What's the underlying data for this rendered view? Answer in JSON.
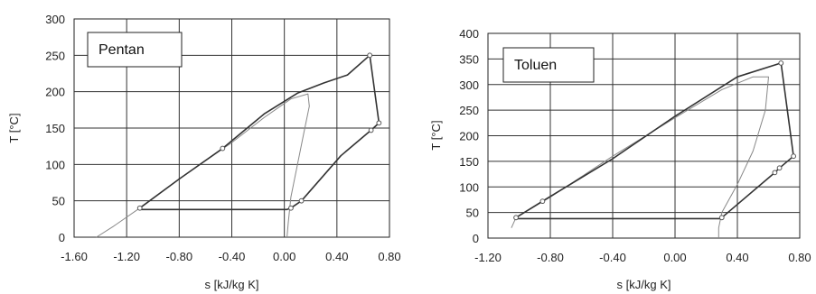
{
  "chart_data": [
    {
      "type": "line",
      "label": "Pentan",
      "xlabel": "s [kJ/kg K]",
      "ylabel": "T [°C]",
      "xlim": [
        -1.6,
        0.8
      ],
      "ylim": [
        0,
        300
      ],
      "xticks": [
        -1.6,
        -1.2,
        -0.8,
        -0.4,
        0.0,
        0.4,
        0.8
      ],
      "xtick_labels": [
        "-1.60",
        "-1.20",
        "-0.80",
        "-0.40",
        "0.00",
        "0.40",
        "0.80"
      ],
      "yticks": [
        0,
        50,
        100,
        150,
        200,
        250,
        300
      ],
      "ytick_labels": [
        "0",
        "50",
        "100",
        "150",
        "200",
        "250",
        "300"
      ],
      "grid": true,
      "series": [
        {
          "style": "saturation-dome",
          "x": [
            -1.43,
            -1.3,
            -1.1,
            -0.8,
            -0.4,
            -0.15,
            0.05,
            0.18,
            0.19,
            0.15,
            0.1,
            0.05,
            0.03,
            0.02
          ],
          "y": [
            0,
            15,
            40,
            80,
            130,
            165,
            190,
            197,
            180,
            145,
            100,
            55,
            20,
            0
          ]
        },
        {
          "style": "cycle",
          "x": [
            -1.1,
            -0.8,
            -0.47,
            -0.15,
            0.1,
            0.3,
            0.48,
            0.65,
            0.72,
            0.66,
            0.43,
            0.13,
            0.05,
            0.02,
            -1.09,
            -1.1
          ],
          "y": [
            40,
            80,
            122,
            170,
            198,
            212,
            223,
            250,
            157,
            147,
            112,
            50,
            40,
            38,
            38,
            40
          ]
        }
      ],
      "markers": {
        "x": [
          -1.1,
          -0.47,
          0.65,
          0.72,
          0.66,
          0.13,
          0.05
        ],
        "y": [
          40,
          122,
          250,
          157,
          147,
          50,
          40
        ]
      }
    },
    {
      "type": "line",
      "label": "Toluen",
      "xlabel": "s [kJ/kg K]",
      "ylabel": "T [°C]",
      "xlim": [
        -1.2,
        0.8
      ],
      "ylim": [
        0,
        400
      ],
      "xticks": [
        -1.2,
        -0.8,
        -0.4,
        0.0,
        0.4,
        0.8
      ],
      "xtick_labels": [
        "-1.20",
        "-0.80",
        "-0.40",
        "0.00",
        "0.40",
        "0.80"
      ],
      "yticks": [
        0,
        50,
        100,
        150,
        200,
        250,
        300,
        350,
        400
      ],
      "ytick_labels": [
        "0",
        "50",
        "100",
        "150",
        "200",
        "250",
        "300",
        "350",
        "400"
      ],
      "grid": true,
      "series": [
        {
          "style": "saturation-dome",
          "x": [
            -1.05,
            -1.02,
            -0.8,
            -0.4,
            0.0,
            0.3,
            0.5,
            0.6,
            0.58,
            0.5,
            0.4,
            0.3,
            0.28,
            0.28
          ],
          "y": [
            20,
            40,
            80,
            160,
            235,
            290,
            315,
            315,
            250,
            170,
            105,
            50,
            20,
            0
          ]
        },
        {
          "style": "cycle",
          "x": [
            -1.02,
            -0.85,
            -0.4,
            0.0,
            0.4,
            0.68,
            0.76,
            0.67,
            0.64,
            0.3,
            0.29,
            -1.01,
            -1.02
          ],
          "y": [
            40,
            72,
            155,
            238,
            315,
            342,
            160,
            137,
            128,
            40,
            38,
            38,
            40
          ]
        }
      ],
      "markers": {
        "x": [
          -1.02,
          -0.85,
          0.68,
          0.76,
          0.67,
          0.64,
          0.3
        ],
        "y": [
          40,
          72,
          342,
          160,
          137,
          128,
          40
        ]
      }
    }
  ]
}
